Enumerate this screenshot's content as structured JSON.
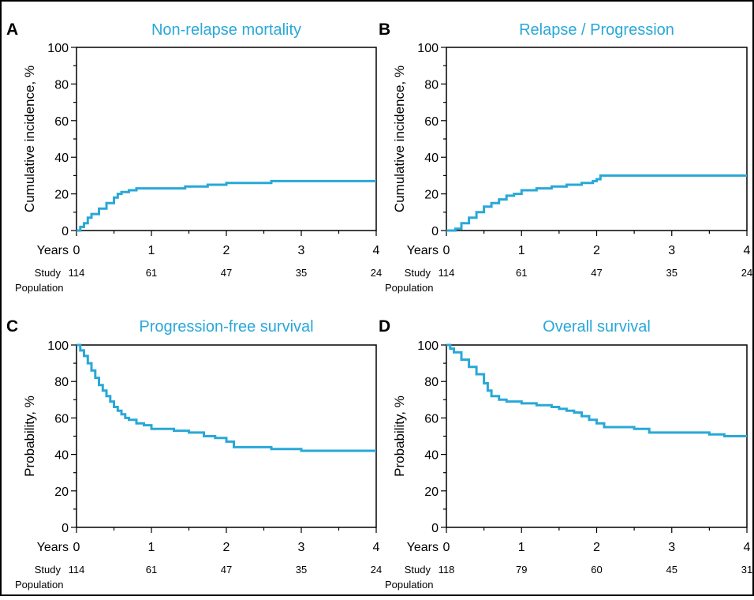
{
  "colors": {
    "curve": "#29a8d8",
    "title": "#29a8d8",
    "axis": "#000000",
    "frame": "#000000"
  },
  "chart_data": [
    {
      "panel": "A",
      "type": "line",
      "title": "Non-relapse mortality",
      "ylabel": "Cumulative incidence, %",
      "xlabel": "Years",
      "xlim": [
        0,
        4
      ],
      "ylim": [
        0,
        100
      ],
      "x_ticks": [
        "0",
        "1",
        "2",
        "3",
        "4"
      ],
      "y_ticks": [
        "0",
        "20",
        "40",
        "60",
        "80",
        "100"
      ],
      "step_curve": true,
      "series": [
        {
          "x": [
            0,
            0.05,
            0.1,
            0.15,
            0.2,
            0.3,
            0.4,
            0.5,
            0.55,
            0.6,
            0.7,
            0.8,
            1.0,
            1.2,
            1.45,
            1.5,
            1.75,
            1.95,
            2.0,
            2.4,
            2.55,
            2.6,
            3.0,
            3.5,
            4.0
          ],
          "y": [
            0,
            2,
            4,
            7,
            9,
            12,
            15,
            18,
            20,
            21,
            22,
            23,
            23,
            23,
            24,
            24,
            25,
            25,
            26,
            26,
            26,
            27,
            27,
            27,
            27
          ]
        }
      ],
      "risk_table": {
        "row_label": "Study",
        "row_label2": "Population",
        "counts": [
          "114",
          "61",
          "47",
          "35",
          "24"
        ]
      }
    },
    {
      "panel": "B",
      "type": "line",
      "title": "Relapse / Progression",
      "ylabel": "Cumulative incidence, %",
      "xlabel": "Years",
      "xlim": [
        0,
        4
      ],
      "ylim": [
        0,
        100
      ],
      "x_ticks": [
        "0",
        "1",
        "2",
        "3",
        "4"
      ],
      "y_ticks": [
        "0",
        "20",
        "40",
        "60",
        "80",
        "100"
      ],
      "step_curve": true,
      "series": [
        {
          "x": [
            0,
            0.12,
            0.2,
            0.3,
            0.4,
            0.5,
            0.6,
            0.7,
            0.8,
            0.9,
            1.0,
            1.2,
            1.4,
            1.6,
            1.8,
            1.95,
            2.0,
            2.05,
            2.5,
            3.0,
            3.5,
            4.0
          ],
          "y": [
            0,
            1,
            4,
            7,
            10,
            13,
            15,
            17,
            19,
            20,
            22,
            23,
            24,
            25,
            26,
            27,
            28,
            30,
            30,
            30,
            30,
            30
          ]
        }
      ],
      "risk_table": {
        "row_label": "Study",
        "row_label2": "Population",
        "counts": [
          "114",
          "61",
          "47",
          "35",
          "24"
        ]
      }
    },
    {
      "panel": "C",
      "type": "line",
      "title": "Progression-free survival",
      "ylabel": "Probability, %",
      "xlabel": "Years",
      "xlim": [
        0,
        4
      ],
      "ylim": [
        0,
        100
      ],
      "x_ticks": [
        "0",
        "1",
        "2",
        "3",
        "4"
      ],
      "y_ticks": [
        "0",
        "20",
        "40",
        "60",
        "80",
        "100"
      ],
      "step_curve": true,
      "series": [
        {
          "x": [
            0,
            0.05,
            0.1,
            0.15,
            0.2,
            0.25,
            0.3,
            0.35,
            0.4,
            0.45,
            0.5,
            0.55,
            0.6,
            0.65,
            0.7,
            0.8,
            0.9,
            1.0,
            1.3,
            1.5,
            1.7,
            1.85,
            2.0,
            2.1,
            2.6,
            3.0,
            3.5,
            4.0
          ],
          "y": [
            100,
            97,
            94,
            90,
            86,
            82,
            78,
            75,
            72,
            69,
            66,
            64,
            62,
            60,
            59,
            57,
            56,
            54,
            53,
            52,
            50,
            49,
            47,
            44,
            43,
            42,
            42,
            42
          ]
        }
      ],
      "risk_table": {
        "row_label": "Study",
        "row_label2": "Population",
        "counts": [
          "114",
          "61",
          "47",
          "35",
          "24"
        ]
      }
    },
    {
      "panel": "D",
      "type": "line",
      "title": "Overall survival",
      "ylabel": "Probability, %",
      "xlabel": "Years",
      "xlim": [
        0,
        4
      ],
      "ylim": [
        0,
        100
      ],
      "x_ticks": [
        "0",
        "1",
        "2",
        "3",
        "4"
      ],
      "y_ticks": [
        "0",
        "20",
        "40",
        "60",
        "80",
        "100"
      ],
      "step_curve": true,
      "series": [
        {
          "x": [
            0,
            0.05,
            0.1,
            0.2,
            0.3,
            0.4,
            0.5,
            0.55,
            0.6,
            0.7,
            0.8,
            1.0,
            1.2,
            1.4,
            1.5,
            1.6,
            1.7,
            1.8,
            1.9,
            2.0,
            2.1,
            2.5,
            2.7,
            3.0,
            3.5,
            3.7,
            4.0
          ],
          "y": [
            100,
            98,
            96,
            92,
            88,
            84,
            79,
            75,
            72,
            70,
            69,
            68,
            67,
            66,
            65,
            64,
            63,
            61,
            59,
            57,
            55,
            54,
            52,
            52,
            51,
            50,
            50
          ]
        }
      ],
      "risk_table": {
        "row_label": "Study",
        "row_label2": "Population",
        "counts": [
          "118",
          "79",
          "60",
          "45",
          "31"
        ]
      }
    }
  ]
}
